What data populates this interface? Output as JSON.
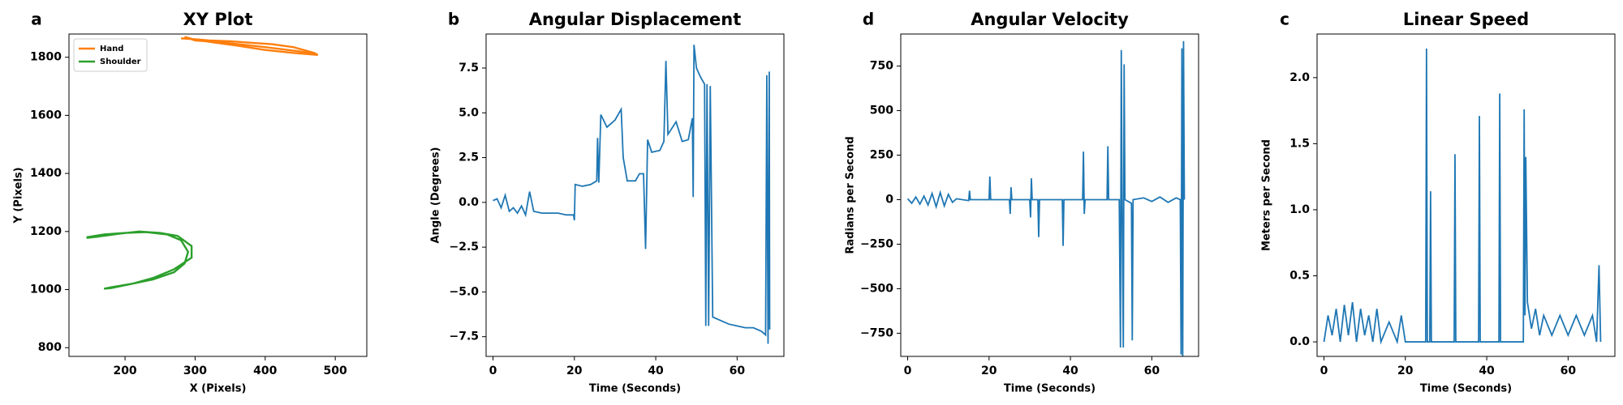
{
  "chart_data": [
    {
      "type": "xy",
      "label": "a",
      "title": "XY Plot",
      "xlabel": "X (Pixels)",
      "ylabel": "Y (Pixels)",
      "xlim": [
        120,
        545
      ],
      "ylim": [
        770,
        1880
      ],
      "xticks": [
        200,
        300,
        400,
        500
      ],
      "yticks": [
        800,
        1000,
        1200,
        1400,
        1600,
        1800
      ],
      "legend": "upper left",
      "series": [
        {
          "name": "Hand",
          "color": "#ff7f0e",
          "x": [
            280,
            300,
            320,
            350,
            380,
            410,
            440,
            470,
            475,
            440,
            400,
            360,
            330,
            300,
            285,
            300,
            350,
            400,
            450,
            470
          ],
          "values": [
            1865,
            1862,
            1858,
            1855,
            1850,
            1845,
            1835,
            1815,
            1808,
            1815,
            1825,
            1840,
            1850,
            1860,
            1870,
            1858,
            1848,
            1835,
            1820,
            1810
          ]
        },
        {
          "name": "Shoulder",
          "color": "#2ca02c",
          "x": [
            145,
            170,
            200,
            230,
            260,
            280,
            290,
            285,
            270,
            240,
            210,
            180,
            170,
            180,
            210,
            240,
            270,
            295,
            295,
            275,
            250,
            220,
            190,
            160,
            145
          ],
          "values": [
            1180,
            1190,
            1195,
            1198,
            1190,
            1170,
            1130,
            1090,
            1060,
            1035,
            1020,
            1005,
            1003,
            1008,
            1020,
            1040,
            1070,
            1110,
            1150,
            1185,
            1195,
            1200,
            1192,
            1182,
            1178
          ]
        }
      ]
    },
    {
      "type": "line",
      "label": "b",
      "title": "Angular Displacement",
      "xlabel": "Time (Seconds)",
      "ylabel": "Angle (Degrees)",
      "xlim": [
        -1.7,
        71.5
      ],
      "ylim": [
        -8.6,
        9.4
      ],
      "xticks": [
        0,
        20,
        40,
        60
      ],
      "yticks": [
        {
          "value": -7.5,
          "label": "−7.5"
        },
        {
          "value": -5,
          "label": "−5.0"
        },
        {
          "value": -2.5,
          "label": "−2.5"
        },
        {
          "value": 0,
          "label": "0.0"
        },
        {
          "value": 2.5,
          "label": "2.5"
        },
        {
          "value": 5,
          "label": "5.0"
        },
        {
          "value": 7.5,
          "label": "7.5"
        }
      ],
      "series": [
        {
          "color": "#1f77b4",
          "x": [
            0,
            1,
            2,
            3,
            4,
            5,
            6,
            7,
            8,
            9,
            10,
            12,
            14,
            16,
            18,
            19.8,
            20,
            20.2,
            22,
            24,
            25.5,
            25.7,
            26,
            26.5,
            28,
            30,
            31.5,
            32,
            33,
            35,
            36,
            37,
            37.5,
            38,
            39,
            41,
            42,
            42.5,
            43,
            45,
            46.5,
            48,
            49,
            49.2,
            49.4,
            50,
            51,
            52,
            52.3,
            52.6,
            53,
            53.4,
            54,
            56,
            58,
            60,
            62,
            64,
            66,
            67,
            67.3,
            67.6,
            67.9,
            68
          ],
          "values": [
            0.1,
            0.2,
            -0.3,
            0.4,
            -0.5,
            -0.3,
            -0.6,
            -0.2,
            -0.7,
            0.6,
            -0.5,
            -0.6,
            -0.6,
            -0.6,
            -0.7,
            -0.7,
            -1.0,
            1.0,
            0.9,
            1.0,
            1.2,
            3.6,
            1.1,
            4.9,
            4.2,
            4.6,
            5.2,
            2.5,
            1.2,
            1.2,
            1.6,
            1.6,
            -2.6,
            3.5,
            2.8,
            2.9,
            3.4,
            7.9,
            3.8,
            4.5,
            3.4,
            3.5,
            4.7,
            0.3,
            8.8,
            7.5,
            7.0,
            6.6,
            -6.9,
            6.6,
            -6.9,
            6.5,
            -6.4,
            -6.6,
            -6.8,
            -6.9,
            -7.0,
            -7.0,
            -7.2,
            -7.4,
            7.1,
            -7.9,
            7.3,
            -7.1
          ]
        }
      ]
    },
    {
      "type": "line",
      "label": "d",
      "title": "Angular Velocity",
      "xlabel": "Time (Seconds)",
      "ylabel": "Radians per Second",
      "xlim": [
        -1.7,
        71.5
      ],
      "ylim": [
        -880,
        930
      ],
      "xticks": [
        0,
        20,
        40,
        60
      ],
      "yticks": [
        {
          "value": -750,
          "label": "−750"
        },
        {
          "value": -500,
          "label": "−500"
        },
        {
          "value": -250,
          "label": "−250"
        },
        0,
        250,
        500,
        750
      ],
      "series": [
        {
          "color": "#1f77b4",
          "x": [
            0,
            1,
            2,
            3,
            4,
            5,
            6,
            7,
            8,
            9,
            10,
            11,
            12,
            15,
            15.2,
            15.4,
            20,
            20.2,
            20.4,
            25,
            25.2,
            25.4,
            25.6,
            30,
            30.2,
            30.4,
            30.6,
            32,
            32.2,
            32.4,
            38,
            38.2,
            38.4,
            40,
            43,
            43.2,
            43.4,
            43.6,
            49,
            49.2,
            49.4,
            52,
            52.3,
            52.5,
            52.7,
            53,
            53.2,
            53.4,
            55,
            55.2,
            55.4,
            58,
            60,
            62,
            64,
            66,
            67,
            67.2,
            67.4,
            67.6,
            67.8,
            68
          ],
          "values": [
            5,
            -20,
            15,
            -25,
            20,
            -30,
            35,
            -40,
            40,
            -35,
            30,
            -15,
            5,
            -5,
            50,
            0,
            0,
            130,
            0,
            0,
            -80,
            70,
            0,
            0,
            -100,
            120,
            0,
            0,
            -210,
            0,
            0,
            -260,
            0,
            0,
            0,
            270,
            -80,
            0,
            0,
            300,
            0,
            0,
            -830,
            840,
            0,
            -830,
            760,
            0,
            -20,
            -790,
            0,
            10,
            -10,
            15,
            -15,
            10,
            0,
            -870,
            850,
            -880,
            890,
            0
          ]
        }
      ]
    },
    {
      "type": "line",
      "label": "c",
      "title": "Linear Speed",
      "xlabel": "Time (Seconds)",
      "ylabel": "Meters per Second",
      "xlim": [
        -1.7,
        71.5
      ],
      "ylim": [
        -0.11,
        2.33
      ],
      "xticks": [
        0,
        20,
        40,
        60
      ],
      "yticks": [
        {
          "value": 0,
          "label": "0.0"
        },
        0.5,
        {
          "value": 1,
          "label": "1.0"
        },
        {
          "value": 1.5,
          "label": "1.5"
        },
        {
          "value": 2,
          "label": "2.0"
        }
      ],
      "series": [
        {
          "color": "#1f77b4",
          "x": [
            0,
            1,
            2,
            3,
            4,
            5,
            6,
            7,
            8,
            9,
            10,
            11,
            12,
            13,
            14,
            16,
            18,
            19,
            20,
            25,
            25.2,
            25.4,
            26,
            26.2,
            26.4,
            32,
            32.2,
            32.4,
            38,
            38.2,
            38.4,
            43,
            43.2,
            43.4,
            49,
            49.2,
            49.4,
            49.6,
            50,
            51,
            52,
            53,
            54,
            56,
            58,
            60,
            62,
            64,
            66,
            67,
            67.6,
            68
          ],
          "values": [
            0,
            0.2,
            0.05,
            0.25,
            0,
            0.28,
            0.05,
            0.3,
            0,
            0.25,
            0.05,
            0.2,
            0,
            0.25,
            0,
            0.15,
            0,
            0.2,
            0,
            0,
            2.22,
            0,
            0,
            1.14,
            0,
            0,
            1.42,
            0,
            0,
            1.71,
            0,
            0,
            1.88,
            0,
            0,
            1.76,
            0.2,
            1.4,
            0.3,
            0.1,
            0.25,
            0.05,
            0.2,
            0.05,
            0.2,
            0.05,
            0.2,
            0.05,
            0.2,
            0,
            0.58,
            0
          ]
        }
      ]
    }
  ]
}
